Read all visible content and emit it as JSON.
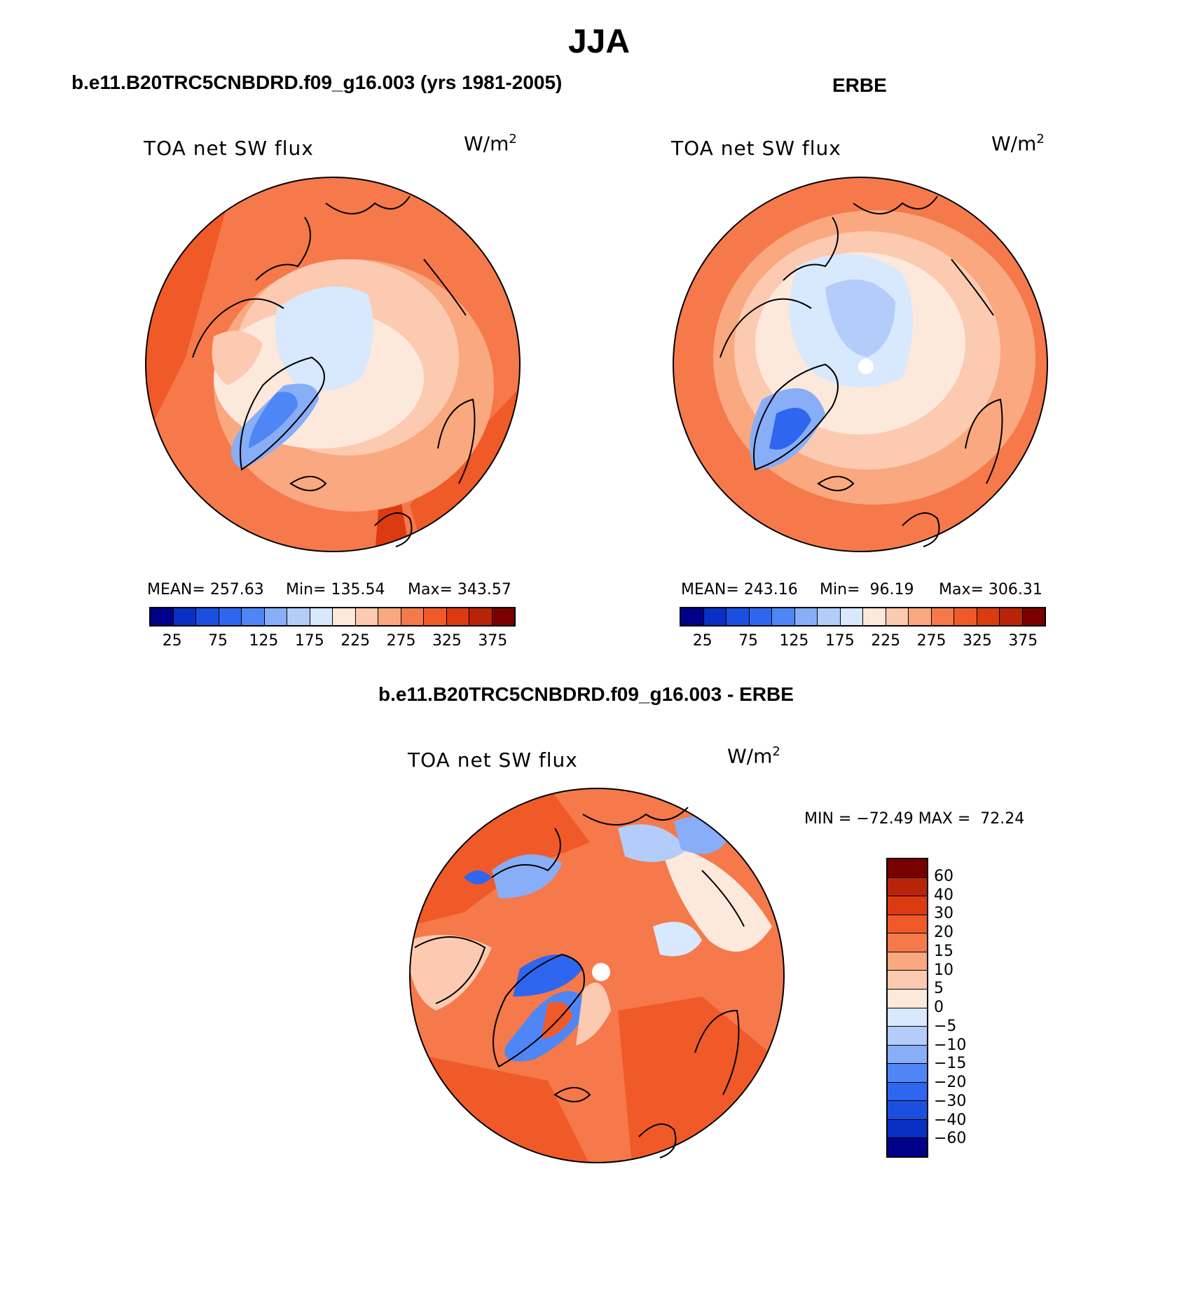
{
  "figure": {
    "season": "JJA",
    "left_title": "b.e11.B20TRC5CNBDRD.f09_g16.003 (yrs 1981-2005)",
    "right_title": "ERBE",
    "diff_title": "b.e11.B20TRC5CNBDRD.f09_g16.003 - ERBE"
  },
  "panels": {
    "model": {
      "variable": "TOA net SW flux",
      "units_base": "W/m",
      "units_exp": "2",
      "mean_label": "MEAN= 257.63",
      "min_label": "Min= 135.54",
      "max_label": "Max= 343.57"
    },
    "obs": {
      "variable": "TOA net SW flux",
      "units_base": "W/m",
      "units_exp": "2",
      "mean_label": "MEAN= 243.16",
      "min_label": "Min=  96.19",
      "max_label": "Max= 306.31"
    },
    "diff": {
      "variable": "TOA net SW flux",
      "units_base": "W/m",
      "units_exp": "2",
      "minmax_label": "MIN = −72.49 MAX =  72.24"
    }
  },
  "colorbar_abs": {
    "colors": [
      "#00008b",
      "#0a2fc4",
      "#1a4fe0",
      "#2f66f0",
      "#4f86f6",
      "#88aef8",
      "#b4ccfa",
      "#d8e8fd",
      "#fde8dc",
      "#fccab0",
      "#f9a880",
      "#f5794a",
      "#f05a28",
      "#dc3a10",
      "#b82408",
      "#7a0000"
    ],
    "ticks": [
      "25",
      "75",
      "125",
      "175",
      "225",
      "275",
      "325",
      "375"
    ]
  },
  "colorbar_diff": {
    "colors_top_to_bottom": [
      "#7a0000",
      "#b82408",
      "#dc3a10",
      "#f05a28",
      "#f5794a",
      "#f9a880",
      "#fccab0",
      "#fde8dc",
      "#d8e8fd",
      "#b4ccfa",
      "#88aef8",
      "#4f86f6",
      "#2f66f0",
      "#1a4fe0",
      "#0a2fc4",
      "#00008b"
    ],
    "ticks": [
      "60",
      "40",
      "30",
      "20",
      "15",
      "10",
      "5",
      "0",
      "−5",
      "−10",
      "−15",
      "−20",
      "−30",
      "−40",
      "−60"
    ]
  }
}
